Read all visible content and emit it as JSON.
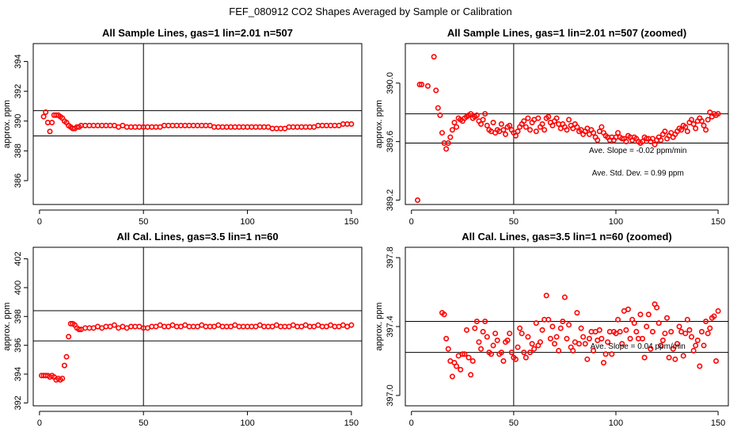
{
  "figure": {
    "title": "FEF_080912  CO2 Shapes Averaged by Sample or Calibration",
    "point_color": "#ff0000"
  },
  "chart_data": [
    {
      "type": "scatter",
      "title": "All Sample Lines, gas=1 lin=2.01 n=507",
      "xlabel": "",
      "ylabel": "approx. ppm",
      "xlim": [
        -3,
        155
      ],
      "ylim": [
        384.4,
        395.2
      ],
      "xticks": [
        0,
        50,
        100,
        150
      ],
      "yticks": [
        386,
        388,
        390,
        392,
        394
      ],
      "hlines": [
        389.0,
        390.7
      ],
      "vline": 50,
      "annotations": [],
      "x": [
        2,
        3,
        4,
        5,
        6,
        7,
        8,
        9,
        10,
        11,
        12,
        13,
        14,
        15,
        16,
        17,
        18,
        19,
        20,
        22,
        24,
        26,
        28,
        30,
        32,
        34,
        36,
        38,
        40,
        42,
        44,
        46,
        48,
        50,
        52,
        54,
        56,
        58,
        60,
        62,
        64,
        66,
        68,
        70,
        72,
        74,
        76,
        78,
        80,
        82,
        84,
        86,
        88,
        90,
        92,
        94,
        96,
        98,
        100,
        102,
        104,
        106,
        108,
        110,
        112,
        114,
        116,
        118,
        120,
        122,
        124,
        126,
        128,
        130,
        132,
        134,
        136,
        138,
        140,
        142,
        144,
        146,
        148,
        150
      ],
      "y": [
        390.3,
        390.6,
        389.9,
        389.3,
        389.9,
        390.4,
        390.4,
        390.4,
        390.3,
        390.2,
        390.0,
        389.9,
        389.7,
        389.6,
        389.5,
        389.5,
        389.6,
        389.6,
        389.7,
        389.7,
        389.7,
        389.7,
        389.7,
        389.7,
        389.7,
        389.7,
        389.7,
        389.6,
        389.7,
        389.6,
        389.6,
        389.6,
        389.6,
        389.6,
        389.6,
        389.6,
        389.6,
        389.6,
        389.7,
        389.7,
        389.7,
        389.7,
        389.7,
        389.7,
        389.7,
        389.7,
        389.7,
        389.7,
        389.7,
        389.7,
        389.6,
        389.6,
        389.6,
        389.6,
        389.6,
        389.6,
        389.6,
        389.6,
        389.6,
        389.6,
        389.6,
        389.6,
        389.6,
        389.6,
        389.5,
        389.5,
        389.5,
        389.5,
        389.6,
        389.6,
        389.6,
        389.6,
        389.6,
        389.6,
        389.6,
        389.7,
        389.7,
        389.7,
        389.7,
        389.7,
        389.7,
        389.8,
        389.8,
        389.8
      ]
    },
    {
      "type": "scatter",
      "title": "All Sample Lines, gas=1 lin=2.01 n=507 (zoomed)",
      "xlabel": "",
      "ylabel": "approx. ppm",
      "xlim": [
        -3,
        155
      ],
      "ylim": [
        389.17,
        390.27
      ],
      "xticks": [
        0,
        50,
        100,
        150
      ],
      "yticks": [
        389.2,
        389.6,
        390.0
      ],
      "ytick_labels": [
        "389.2",
        "389.6",
        "390.0"
      ],
      "hlines": [
        389.59,
        389.79
      ],
      "vline": 50,
      "annotations": [
        "Ave. Slope =  -0.02  ppm/min",
        "Ave. Std. Dev. =  0.99  ppm"
      ],
      "x": [
        3,
        4,
        5,
        8,
        11,
        12,
        13,
        14,
        15,
        16,
        17,
        18,
        19,
        20,
        21,
        22,
        23,
        24,
        25,
        26,
        27,
        28,
        29,
        30,
        31,
        32,
        33,
        34,
        35,
        36,
        37,
        38,
        39,
        40,
        41,
        42,
        43,
        44,
        45,
        46,
        47,
        48,
        49,
        50,
        51,
        52,
        53,
        54,
        55,
        56,
        57,
        58,
        59,
        60,
        61,
        62,
        63,
        64,
        65,
        66,
        67,
        68,
        69,
        70,
        71,
        72,
        73,
        74,
        75,
        76,
        77,
        78,
        79,
        80,
        81,
        82,
        83,
        84,
        85,
        86,
        87,
        88,
        89,
        90,
        91,
        92,
        93,
        94,
        95,
        96,
        97,
        98,
        99,
        100,
        101,
        102,
        103,
        104,
        105,
        106,
        107,
        108,
        109,
        110,
        111,
        112,
        113,
        114,
        115,
        116,
        117,
        118,
        119,
        120,
        121,
        122,
        123,
        124,
        125,
        126,
        127,
        128,
        129,
        130,
        131,
        132,
        133,
        134,
        135,
        136,
        137,
        138,
        139,
        140,
        141,
        142,
        143,
        144,
        145,
        146,
        147,
        148,
        149,
        150
      ],
      "y": [
        389.2,
        389.99,
        389.99,
        389.98,
        390.18,
        389.95,
        389.83,
        389.78,
        389.66,
        389.59,
        389.55,
        389.59,
        389.63,
        389.68,
        389.73,
        389.7,
        389.76,
        389.75,
        389.74,
        389.76,
        389.77,
        389.78,
        389.79,
        389.76,
        389.77,
        389.78,
        389.74,
        389.72,
        389.75,
        389.79,
        389.71,
        389.68,
        389.67,
        389.73,
        389.66,
        389.68,
        389.67,
        389.72,
        389.68,
        389.65,
        389.7,
        389.71,
        389.68,
        389.66,
        389.64,
        389.67,
        389.7,
        389.72,
        389.74,
        389.7,
        389.76,
        389.68,
        389.73,
        389.75,
        389.67,
        389.76,
        389.7,
        389.72,
        389.68,
        389.76,
        389.77,
        389.73,
        389.71,
        389.74,
        389.76,
        389.72,
        389.69,
        389.72,
        389.7,
        389.68,
        389.75,
        389.71,
        389.69,
        389.72,
        389.7,
        389.67,
        389.68,
        389.65,
        389.67,
        389.69,
        389.65,
        389.68,
        389.66,
        389.63,
        389.61,
        389.67,
        389.7,
        389.66,
        389.64,
        389.63,
        389.61,
        389.63,
        389.61,
        389.63,
        389.66,
        389.63,
        389.62,
        389.62,
        389.6,
        389.64,
        389.63,
        389.61,
        389.63,
        389.62,
        389.6,
        389.59,
        389.6,
        389.63,
        389.62,
        389.62,
        389.6,
        389.62,
        389.58,
        389.61,
        389.63,
        389.61,
        389.65,
        389.67,
        389.62,
        389.64,
        389.66,
        389.63,
        389.65,
        389.67,
        389.69,
        389.68,
        389.71,
        389.7,
        389.67,
        389.73,
        389.75,
        389.72,
        389.69,
        389.74,
        389.76,
        389.74,
        389.71,
        389.68,
        389.75,
        389.8,
        389.77,
        389.79,
        389.78,
        389.79
      ]
    },
    {
      "type": "scatter",
      "title": "All Cal. Lines, gas=3.5 lin=1 n=60",
      "xlabel": "",
      "ylabel": "approx. ppm",
      "xlim": [
        -3,
        155
      ],
      "ylim": [
        391.8,
        402.8
      ],
      "xticks": [
        0,
        50,
        100,
        150
      ],
      "yticks": [
        392,
        394,
        396,
        398,
        400,
        402
      ],
      "hlines": [
        396.3,
        398.4
      ],
      "vline": 50,
      "annotations": [],
      "x": [
        1,
        2,
        3,
        4,
        5,
        6,
        7,
        8,
        9,
        10,
        11,
        12,
        13,
        14,
        15,
        16,
        17,
        18,
        19,
        20,
        22,
        24,
        26,
        28,
        30,
        32,
        34,
        36,
        38,
        40,
        42,
        44,
        46,
        48,
        50,
        52,
        54,
        56,
        58,
        60,
        62,
        64,
        66,
        68,
        70,
        72,
        74,
        76,
        78,
        80,
        82,
        84,
        86,
        88,
        90,
        92,
        94,
        96,
        98,
        100,
        102,
        104,
        106,
        108,
        110,
        112,
        114,
        116,
        118,
        120,
        122,
        124,
        126,
        128,
        130,
        132,
        134,
        136,
        138,
        140,
        142,
        144,
        146,
        148,
        150
      ],
      "y": [
        393.9,
        393.9,
        393.9,
        393.9,
        393.8,
        393.9,
        393.8,
        393.6,
        393.7,
        393.6,
        393.7,
        394.6,
        395.2,
        396.6,
        397.5,
        397.5,
        397.4,
        397.2,
        397.1,
        397.1,
        397.2,
        397.2,
        397.2,
        397.3,
        397.2,
        397.3,
        397.3,
        397.4,
        397.2,
        397.3,
        397.2,
        397.3,
        397.3,
        397.3,
        397.2,
        397.2,
        397.3,
        397.3,
        397.4,
        397.3,
        397.3,
        397.4,
        397.3,
        397.3,
        397.4,
        397.3,
        397.3,
        397.3,
        397.4,
        397.3,
        397.3,
        397.3,
        397.4,
        397.3,
        397.3,
        397.3,
        397.4,
        397.3,
        397.3,
        397.3,
        397.3,
        397.3,
        397.4,
        397.3,
        397.3,
        397.3,
        397.4,
        397.3,
        397.3,
        397.3,
        397.4,
        397.3,
        397.3,
        397.4,
        397.3,
        397.3,
        397.4,
        397.3,
        397.3,
        397.4,
        397.3,
        397.3,
        397.4,
        397.3,
        397.4
      ]
    },
    {
      "type": "scatter",
      "title": "All Cal. Lines, gas=3.5 lin=1 n=60 (zoomed)",
      "xlabel": "",
      "ylabel": "approx. ppm",
      "xlim": [
        -3,
        155
      ],
      "ylim": [
        396.94,
        397.86
      ],
      "xticks": [
        0,
        50,
        100,
        150
      ],
      "yticks": [
        397.0,
        397.4,
        397.8
      ],
      "ytick_labels": [
        "397.0",
        "397.4",
        "397.8"
      ],
      "hlines": [
        397.25,
        397.43
      ],
      "vline": 50,
      "annotations": [
        "Ave. Slope =  0.04  ppm/min"
      ],
      "x": [
        15,
        16,
        17,
        18,
        19,
        20,
        21,
        22,
        23,
        24,
        25,
        26,
        27,
        28,
        29,
        30,
        31,
        32,
        33,
        34,
        35,
        36,
        37,
        38,
        39,
        40,
        41,
        42,
        43,
        44,
        45,
        46,
        47,
        48,
        49,
        50,
        51,
        52,
        53,
        54,
        55,
        56,
        57,
        58,
        59,
        60,
        61,
        62,
        63,
        64,
        65,
        66,
        67,
        68,
        69,
        70,
        71,
        72,
        73,
        74,
        75,
        76,
        77,
        78,
        79,
        80,
        81,
        82,
        83,
        84,
        85,
        86,
        87,
        88,
        89,
        90,
        91,
        92,
        93,
        94,
        95,
        96,
        97,
        98,
        99,
        100,
        101,
        102,
        103,
        104,
        105,
        106,
        107,
        108,
        109,
        110,
        111,
        112,
        113,
        114,
        115,
        116,
        117,
        118,
        119,
        120,
        121,
        122,
        123,
        124,
        125,
        126,
        127,
        128,
        129,
        130,
        131,
        132,
        133,
        134,
        135,
        136,
        137,
        138,
        139,
        140,
        141,
        142,
        143,
        144,
        145,
        146,
        147,
        148,
        149,
        150
      ],
      "y": [
        397.48,
        397.47,
        397.33,
        397.27,
        397.2,
        397.11,
        397.19,
        397.17,
        397.23,
        397.15,
        397.24,
        397.24,
        397.38,
        397.22,
        397.12,
        397.2,
        397.39,
        397.43,
        397.31,
        397.27,
        397.37,
        397.43,
        397.34,
        397.25,
        397.24,
        397.29,
        397.36,
        397.32,
        397.24,
        397.25,
        397.2,
        397.31,
        397.32,
        397.36,
        397.25,
        397.22,
        397.21,
        397.28,
        397.39,
        397.36,
        397.25,
        397.22,
        397.34,
        397.25,
        397.3,
        397.27,
        397.42,
        397.29,
        397.31,
        397.38,
        397.44,
        397.58,
        397.44,
        397.33,
        397.4,
        397.3,
        397.34,
        397.26,
        397.39,
        397.43,
        397.57,
        397.33,
        397.41,
        397.28,
        397.26,
        397.31,
        397.48,
        397.3,
        397.39,
        397.34,
        397.3,
        397.21,
        397.33,
        397.37,
        397.26,
        397.37,
        397.32,
        397.38,
        397.33,
        397.19,
        397.24,
        397.31,
        397.37,
        397.24,
        397.37,
        397.36,
        397.44,
        397.37,
        397.3,
        397.49,
        397.38,
        397.5,
        397.33,
        397.44,
        397.42,
        397.37,
        397.33,
        397.47,
        397.33,
        397.22,
        397.4,
        397.47,
        397.27,
        397.37,
        397.53,
        397.51,
        397.42,
        397.29,
        397.32,
        397.36,
        397.45,
        397.22,
        397.37,
        397.27,
        397.21,
        397.3,
        397.4,
        397.37,
        397.23,
        397.36,
        397.44,
        397.38,
        397.34,
        397.26,
        397.29,
        397.32,
        397.17,
        397.37,
        397.29,
        397.43,
        397.36,
        397.39,
        397.45,
        397.46,
        397.2,
        397.49
      ]
    }
  ]
}
